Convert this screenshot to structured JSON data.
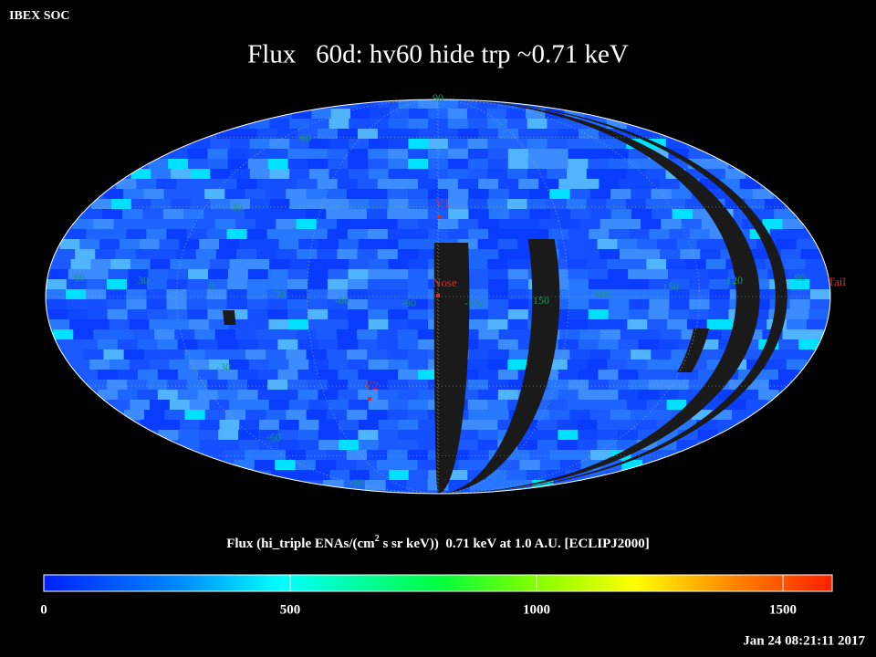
{
  "header": {
    "org": "IBEX SOC",
    "title": "Flux   60d: hv60 hide trp ~0.71 keV"
  },
  "map": {
    "grid_labels": [
      "90",
      "60",
      "30",
      "60",
      "30",
      "0",
      "-30",
      "-60",
      "-90",
      "-120",
      "150",
      "180",
      "150",
      "120",
      "90",
      "-30",
      "-60",
      "-90"
    ],
    "markers": [
      {
        "label": "V1"
      },
      {
        "label": "Nose"
      },
      {
        "label": "V2"
      },
      {
        "label": "Tail"
      }
    ]
  },
  "colorbar": {
    "label_before": "Flux (hi_triple ENAs/(cm",
    "label_sup": "2",
    "label_after": " s sr keV))  0.71 keV at 1.0 A.U. [ECLIPJ2000]",
    "lim": [
      0,
      1600
    ],
    "ticks": [
      0,
      500,
      1000,
      1500
    ]
  },
  "timestamp": "Jan 24 08:21:11 2017"
}
